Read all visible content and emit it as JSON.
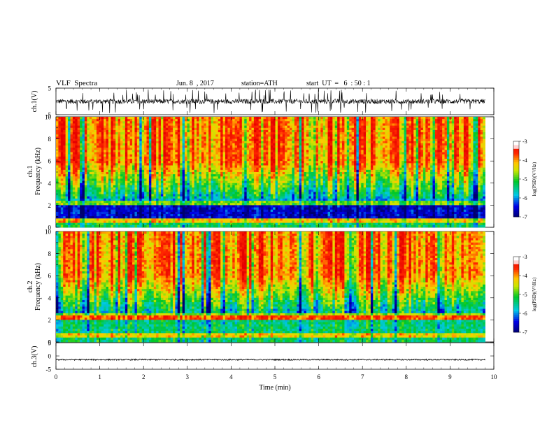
{
  "header": {
    "title": "VLF  Spectra",
    "date": "Jun. 8  , 2017",
    "station": "station=ATH",
    "start": "start  UT  =   6  : 50 : 1"
  },
  "colors": {
    "spectrogram_low": "#00008b",
    "spectrogram_mid": "#00c000",
    "spectrogram_high": "#ff2000",
    "waveform": "#000000"
  },
  "chart_data": [
    {
      "type": "line",
      "panel": "ch1-waveform",
      "ylabel": "ch.1(V)",
      "ylim": [
        -5,
        5
      ],
      "yticks": [
        "5",
        "-5"
      ],
      "xlim": [
        0,
        10
      ],
      "x_range": [
        0,
        9.8
      ],
      "typical_value": 0,
      "typical_amplitude": 1.5,
      "spike_amplitude": 4.5
    },
    {
      "type": "heatmap",
      "panel": "ch1-spectrogram",
      "ylabel_line1": "ch.1",
      "ylabel_line2": "Frequency  (kHz)",
      "ylim": [
        0,
        10
      ],
      "yticks": [
        "0",
        "2",
        "4",
        "6",
        "8",
        "10"
      ],
      "xlim": [
        0,
        10
      ],
      "x_range": [
        0,
        9.8
      ],
      "colorbar": {
        "label": "log(PSD)(V²/Hz)",
        "range": [
          -7,
          -3
        ],
        "ticks": [
          "-3",
          "-4",
          "-5",
          "-6",
          "-7"
        ]
      }
    },
    {
      "type": "heatmap",
      "panel": "ch2-spectrogram",
      "ylabel_line1": "ch.2",
      "ylabel_line2": "Frequency  (kHz)",
      "ylim": [
        0,
        10
      ],
      "yticks": [
        "0",
        "2",
        "4",
        "6",
        "8",
        "10"
      ],
      "xlim": [
        0,
        10
      ],
      "x_range": [
        0,
        9.8
      ],
      "colorbar": {
        "label": "log(PSD)(V²/Hz)",
        "range": [
          -7,
          -3
        ],
        "ticks": [
          "-3",
          "-4",
          "-5",
          "-6",
          "-7"
        ]
      }
    },
    {
      "type": "line",
      "panel": "ch3-waveform",
      "ylabel": "ch.3(V)",
      "ylim": [
        -5,
        5
      ],
      "yticks": [
        "5",
        "0",
        "-5"
      ],
      "xlim": [
        0,
        10
      ],
      "x_range": [
        0,
        9.8
      ],
      "typical_value": -1.4,
      "typical_amplitude": 0.25,
      "xlabel": "Time  (min)",
      "xticks": [
        "0",
        "1",
        "2",
        "3",
        "4",
        "5",
        "6",
        "7",
        "8",
        "9",
        "10"
      ]
    }
  ]
}
